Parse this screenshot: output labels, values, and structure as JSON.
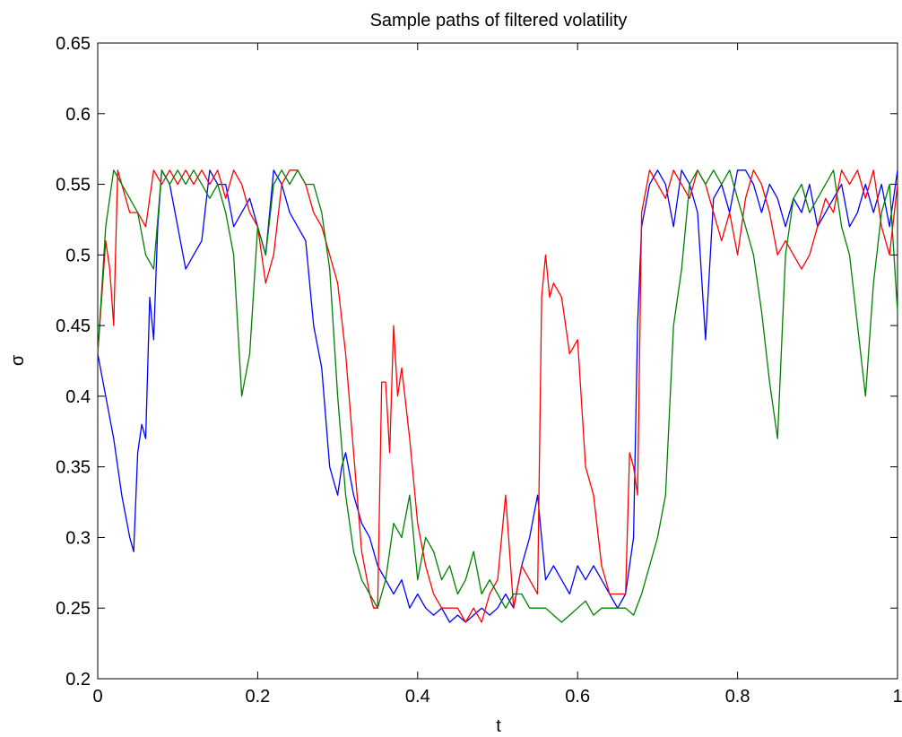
{
  "chart_data": {
    "type": "line",
    "title": "Sample paths of filtered volatility",
    "xlabel": "t",
    "ylabel": "σ",
    "xlim": [
      0,
      1
    ],
    "ylim": [
      0.2,
      0.65
    ],
    "grid": false,
    "x_ticks": [
      "0",
      "0.2",
      "0.4",
      "0.6",
      "0.8",
      "1"
    ],
    "y_ticks": [
      "0.2",
      "0.25",
      "0.3",
      "0.35",
      "0.4",
      "0.45",
      "0.5",
      "0.55",
      "0.6",
      "0.65"
    ],
    "series": [
      {
        "color": "#0000ff",
        "x": [
          0,
          0.01,
          0.02,
          0.03,
          0.04,
          0.045,
          0.05,
          0.055,
          0.06,
          0.065,
          0.07,
          0.075,
          0.08,
          0.09,
          0.1,
          0.11,
          0.12,
          0.13,
          0.14,
          0.15,
          0.16,
          0.17,
          0.18,
          0.19,
          0.2,
          0.21,
          0.22,
          0.23,
          0.24,
          0.25,
          0.26,
          0.27,
          0.28,
          0.29,
          0.295,
          0.3,
          0.305,
          0.31,
          0.32,
          0.33,
          0.34,
          0.35,
          0.36,
          0.37,
          0.38,
          0.39,
          0.4,
          0.41,
          0.42,
          0.43,
          0.44,
          0.45,
          0.46,
          0.47,
          0.48,
          0.49,
          0.5,
          0.51,
          0.52,
          0.53,
          0.54,
          0.55,
          0.56,
          0.57,
          0.58,
          0.59,
          0.6,
          0.61,
          0.62,
          0.63,
          0.64,
          0.65,
          0.66,
          0.665,
          0.67,
          0.675,
          0.68,
          0.69,
          0.7,
          0.71,
          0.72,
          0.73,
          0.74,
          0.75,
          0.76,
          0.77,
          0.78,
          0.79,
          0.8,
          0.81,
          0.82,
          0.83,
          0.84,
          0.85,
          0.86,
          0.87,
          0.88,
          0.89,
          0.9,
          0.91,
          0.92,
          0.93,
          0.94,
          0.95,
          0.96,
          0.97,
          0.98,
          0.99,
          1
        ],
        "y": [
          0.43,
          0.4,
          0.37,
          0.33,
          0.3,
          0.29,
          0.36,
          0.38,
          0.37,
          0.47,
          0.44,
          0.52,
          0.56,
          0.55,
          0.52,
          0.49,
          0.5,
          0.51,
          0.56,
          0.55,
          0.55,
          0.52,
          0.53,
          0.54,
          0.52,
          0.5,
          0.56,
          0.55,
          0.53,
          0.52,
          0.51,
          0.45,
          0.42,
          0.35,
          0.34,
          0.33,
          0.35,
          0.36,
          0.33,
          0.31,
          0.3,
          0.28,
          0.27,
          0.26,
          0.27,
          0.25,
          0.26,
          0.25,
          0.245,
          0.25,
          0.24,
          0.245,
          0.24,
          0.245,
          0.25,
          0.245,
          0.25,
          0.26,
          0.25,
          0.28,
          0.3,
          0.33,
          0.27,
          0.28,
          0.27,
          0.26,
          0.28,
          0.27,
          0.28,
          0.27,
          0.26,
          0.25,
          0.26,
          0.28,
          0.3,
          0.45,
          0.52,
          0.55,
          0.56,
          0.55,
          0.52,
          0.56,
          0.55,
          0.53,
          0.44,
          0.54,
          0.55,
          0.53,
          0.56,
          0.56,
          0.55,
          0.53,
          0.55,
          0.54,
          0.52,
          0.54,
          0.53,
          0.55,
          0.52,
          0.53,
          0.54,
          0.55,
          0.52,
          0.53,
          0.55,
          0.53,
          0.55,
          0.52,
          0.56
        ]
      },
      {
        "color": "#ff0000",
        "x": [
          0,
          0.01,
          0.015,
          0.02,
          0.025,
          0.03,
          0.04,
          0.05,
          0.06,
          0.07,
          0.08,
          0.09,
          0.1,
          0.11,
          0.12,
          0.13,
          0.14,
          0.15,
          0.16,
          0.17,
          0.18,
          0.19,
          0.2,
          0.21,
          0.22,
          0.23,
          0.24,
          0.25,
          0.26,
          0.27,
          0.28,
          0.29,
          0.3,
          0.31,
          0.32,
          0.33,
          0.34,
          0.345,
          0.35,
          0.355,
          0.36,
          0.365,
          0.37,
          0.375,
          0.38,
          0.39,
          0.4,
          0.41,
          0.42,
          0.43,
          0.44,
          0.45,
          0.46,
          0.47,
          0.48,
          0.49,
          0.5,
          0.51,
          0.52,
          0.53,
          0.54,
          0.55,
          0.555,
          0.56,
          0.565,
          0.57,
          0.58,
          0.59,
          0.6,
          0.61,
          0.62,
          0.63,
          0.64,
          0.65,
          0.66,
          0.665,
          0.67,
          0.675,
          0.68,
          0.69,
          0.7,
          0.71,
          0.72,
          0.73,
          0.74,
          0.75,
          0.76,
          0.77,
          0.78,
          0.79,
          0.8,
          0.81,
          0.82,
          0.83,
          0.84,
          0.85,
          0.86,
          0.87,
          0.88,
          0.89,
          0.9,
          0.91,
          0.92,
          0.93,
          0.94,
          0.95,
          0.96,
          0.97,
          0.98,
          0.99,
          1
        ],
        "y": [
          0.43,
          0.51,
          0.49,
          0.45,
          0.56,
          0.55,
          0.53,
          0.53,
          0.52,
          0.56,
          0.55,
          0.56,
          0.55,
          0.56,
          0.55,
          0.56,
          0.55,
          0.56,
          0.54,
          0.56,
          0.55,
          0.53,
          0.52,
          0.48,
          0.5,
          0.55,
          0.56,
          0.56,
          0.55,
          0.53,
          0.52,
          0.5,
          0.48,
          0.43,
          0.36,
          0.29,
          0.26,
          0.25,
          0.25,
          0.41,
          0.41,
          0.36,
          0.45,
          0.4,
          0.42,
          0.37,
          0.31,
          0.28,
          0.26,
          0.25,
          0.25,
          0.25,
          0.24,
          0.25,
          0.24,
          0.26,
          0.27,
          0.33,
          0.25,
          0.28,
          0.27,
          0.26,
          0.47,
          0.5,
          0.47,
          0.48,
          0.47,
          0.43,
          0.44,
          0.35,
          0.33,
          0.28,
          0.26,
          0.26,
          0.26,
          0.36,
          0.35,
          0.33,
          0.53,
          0.56,
          0.55,
          0.54,
          0.56,
          0.55,
          0.54,
          0.56,
          0.55,
          0.53,
          0.51,
          0.53,
          0.5,
          0.54,
          0.56,
          0.55,
          0.53,
          0.5,
          0.51,
          0.5,
          0.49,
          0.5,
          0.52,
          0.54,
          0.53,
          0.56,
          0.55,
          0.56,
          0.54,
          0.56,
          0.52,
          0.5,
          0.55
        ]
      },
      {
        "color": "#008000",
        "x": [
          0,
          0.01,
          0.02,
          0.03,
          0.04,
          0.05,
          0.06,
          0.07,
          0.08,
          0.09,
          0.1,
          0.11,
          0.12,
          0.13,
          0.14,
          0.15,
          0.16,
          0.17,
          0.18,
          0.19,
          0.2,
          0.21,
          0.22,
          0.23,
          0.24,
          0.25,
          0.26,
          0.27,
          0.28,
          0.29,
          0.3,
          0.31,
          0.32,
          0.33,
          0.34,
          0.35,
          0.36,
          0.37,
          0.38,
          0.39,
          0.4,
          0.41,
          0.42,
          0.43,
          0.44,
          0.45,
          0.46,
          0.47,
          0.48,
          0.49,
          0.5,
          0.51,
          0.52,
          0.53,
          0.54,
          0.55,
          0.56,
          0.57,
          0.58,
          0.59,
          0.6,
          0.61,
          0.62,
          0.63,
          0.64,
          0.65,
          0.66,
          0.67,
          0.68,
          0.69,
          0.7,
          0.71,
          0.72,
          0.73,
          0.74,
          0.75,
          0.76,
          0.77,
          0.78,
          0.79,
          0.8,
          0.81,
          0.82,
          0.83,
          0.84,
          0.85,
          0.86,
          0.87,
          0.88,
          0.89,
          0.9,
          0.91,
          0.92,
          0.93,
          0.94,
          0.95,
          0.96,
          0.97,
          0.98,
          0.99,
          1
        ],
        "y": [
          0.43,
          0.52,
          0.56,
          0.55,
          0.54,
          0.53,
          0.5,
          0.49,
          0.56,
          0.55,
          0.56,
          0.55,
          0.56,
          0.55,
          0.54,
          0.55,
          0.53,
          0.5,
          0.4,
          0.43,
          0.52,
          0.5,
          0.55,
          0.56,
          0.55,
          0.56,
          0.55,
          0.55,
          0.53,
          0.49,
          0.4,
          0.33,
          0.29,
          0.27,
          0.26,
          0.25,
          0.27,
          0.31,
          0.3,
          0.33,
          0.27,
          0.3,
          0.29,
          0.27,
          0.28,
          0.26,
          0.27,
          0.29,
          0.26,
          0.27,
          0.26,
          0.25,
          0.26,
          0.26,
          0.25,
          0.25,
          0.25,
          0.245,
          0.24,
          0.245,
          0.25,
          0.255,
          0.245,
          0.25,
          0.25,
          0.25,
          0.25,
          0.245,
          0.26,
          0.28,
          0.3,
          0.33,
          0.45,
          0.49,
          0.55,
          0.56,
          0.55,
          0.56,
          0.55,
          0.56,
          0.54,
          0.52,
          0.5,
          0.46,
          0.41,
          0.37,
          0.5,
          0.54,
          0.55,
          0.53,
          0.54,
          0.55,
          0.56,
          0.52,
          0.5,
          0.45,
          0.4,
          0.48,
          0.53,
          0.55,
          0.46
        ]
      }
    ]
  }
}
